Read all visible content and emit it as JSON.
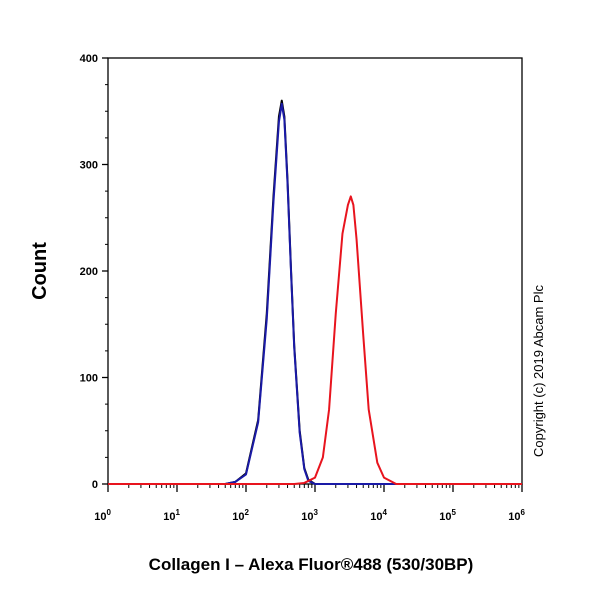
{
  "chart_data": {
    "type": "line",
    "title": "",
    "xlabel": "Collagen I – Alexa Fluor®488 (530/30BP)",
    "ylabel": "Count",
    "xscale": "log",
    "xlim": [
      1,
      1000000
    ],
    "ylim": [
      0,
      400
    ],
    "yticks": [
      0,
      100,
      200,
      300,
      400
    ],
    "xticks": [
      {
        "value": 1,
        "base": "10",
        "exp": "0"
      },
      {
        "value": 10,
        "base": "10",
        "exp": "1"
      },
      {
        "value": 100,
        "base": "10",
        "exp": "2"
      },
      {
        "value": 1000,
        "base": "10",
        "exp": "3"
      },
      {
        "value": 10000,
        "base": "10",
        "exp": "4"
      },
      {
        "value": 100000,
        "base": "10",
        "exp": "5"
      },
      {
        "value": 1000000,
        "base": "10",
        "exp": "6"
      }
    ],
    "grid": false,
    "legend": "none",
    "annotation": "Copyright (c) 2019 Abcam Plc",
    "series": [
      {
        "color": "#000000",
        "x": [
          1,
          10,
          50,
          70,
          100,
          150,
          200,
          250,
          300,
          330,
          360,
          400,
          450,
          500,
          600,
          700,
          800,
          1000,
          10000,
          1000000
        ],
        "y": [
          0,
          0,
          0,
          2,
          10,
          60,
          160,
          270,
          345,
          360,
          345,
          285,
          200,
          130,
          50,
          15,
          4,
          0,
          0,
          0
        ]
      },
      {
        "color": "#1a1aa6",
        "x": [
          1,
          10,
          50,
          70,
          100,
          150,
          200,
          250,
          300,
          330,
          360,
          400,
          450,
          500,
          600,
          700,
          800,
          1000,
          10000,
          1000000
        ],
        "y": [
          0,
          0,
          0,
          2,
          9,
          58,
          155,
          265,
          340,
          357,
          342,
          282,
          198,
          128,
          48,
          14,
          3,
          0,
          0,
          0
        ]
      },
      {
        "color": "#e8141e",
        "x": [
          1,
          10,
          100,
          500,
          700,
          1000,
          1300,
          1600,
          2000,
          2500,
          3000,
          3300,
          3600,
          4000,
          5000,
          6000,
          8000,
          10000,
          15000,
          100000,
          1000000
        ],
        "y": [
          0,
          0,
          0,
          0,
          1,
          6,
          25,
          70,
          160,
          235,
          262,
          270,
          262,
          230,
          140,
          70,
          20,
          6,
          0,
          0,
          0
        ]
      }
    ]
  }
}
